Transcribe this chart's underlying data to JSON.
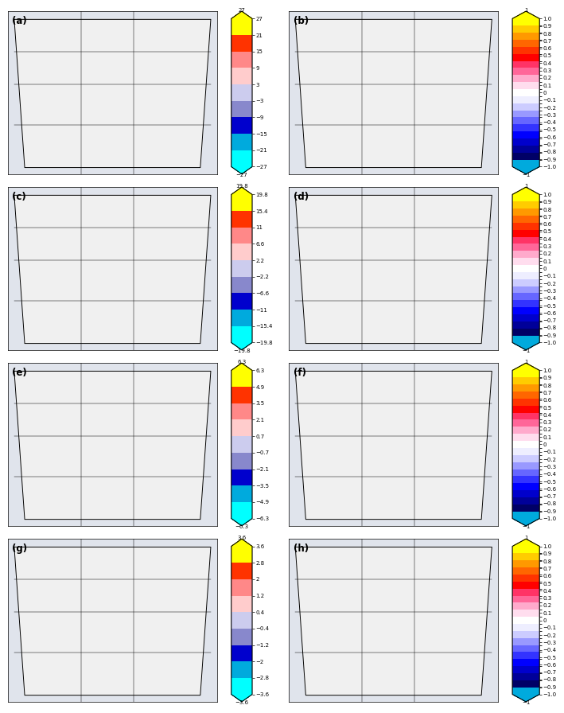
{
  "panels": [
    {
      "label": "a",
      "cbar_vals": [
        27,
        21,
        15,
        9,
        3,
        -3,
        -9,
        -15,
        -21,
        -27
      ],
      "cbar_ticks": [
        27,
        21,
        15,
        9,
        3,
        -3,
        -9,
        -15,
        -21,
        -27
      ]
    },
    {
      "label": "b",
      "cbar_vals": [
        1,
        0.9,
        0.8,
        0.7,
        0.6,
        0.5,
        0.4,
        0.3,
        0.2,
        0.1,
        0,
        -0.1,
        -0.2,
        -0.3,
        -0.4,
        -0.5,
        -0.6,
        -0.7,
        -0.8,
        -0.9,
        -1
      ],
      "cbar_ticks": [
        1,
        0.9,
        0.8,
        0.7,
        0.6,
        0.5,
        0.4,
        0.3,
        0.2,
        0.1,
        0,
        -0.1,
        -0.2,
        -0.3,
        -0.4,
        -0.5,
        -0.6,
        -0.7,
        -0.8,
        -0.9,
        -1
      ]
    },
    {
      "label": "c",
      "cbar_vals": [
        19.8,
        15.4,
        11,
        6.6,
        2.2,
        -2.2,
        -6.6,
        -11,
        -15.4,
        -19.8
      ],
      "cbar_ticks": [
        19.8,
        15.4,
        11,
        6.6,
        2.2,
        -2.2,
        -6.6,
        -11,
        -15.4,
        -19.8
      ]
    },
    {
      "label": "d",
      "cbar_vals": [
        1,
        0.9,
        0.8,
        0.7,
        0.6,
        0.5,
        0.4,
        0.3,
        0.2,
        0.1,
        0,
        -0.1,
        -0.2,
        -0.3,
        -0.4,
        -0.5,
        -0.6,
        -0.7,
        -0.8,
        -0.9,
        -1
      ],
      "cbar_ticks": [
        1,
        0.9,
        0.8,
        0.7,
        0.6,
        0.5,
        0.4,
        0.3,
        0.2,
        0.1,
        0,
        -0.1,
        -0.2,
        -0.3,
        -0.4,
        -0.5,
        -0.6,
        -0.7,
        -0.8,
        -0.9,
        -1
      ]
    },
    {
      "label": "e",
      "cbar_vals": [
        6.3,
        4.9,
        3.5,
        2.1,
        0.7,
        -0.7,
        -2.1,
        -3.5,
        -4.9,
        -6.3
      ],
      "cbar_ticks": [
        6.3,
        4.9,
        3.5,
        2.1,
        0.7,
        -0.7,
        -2.1,
        -3.5,
        -4.9,
        -6.3
      ]
    },
    {
      "label": "f",
      "cbar_vals": [
        1,
        0.9,
        0.8,
        0.7,
        0.6,
        0.5,
        0.4,
        0.3,
        0.2,
        0.1,
        0,
        -0.1,
        -0.2,
        -0.3,
        -0.4,
        -0.5,
        -0.6,
        -0.7,
        -0.8,
        -0.9,
        -1
      ],
      "cbar_ticks": [
        1,
        0.9,
        0.8,
        0.7,
        0.6,
        0.5,
        0.4,
        0.3,
        0.2,
        0.1,
        0,
        -0.1,
        -0.2,
        -0.3,
        -0.4,
        -0.5,
        -0.6,
        -0.7,
        -0.8,
        -0.9,
        -1
      ]
    },
    {
      "label": "g",
      "cbar_vals": [
        3.6,
        2.8,
        2.0,
        1.2,
        0.4,
        -0.4,
        -1.2,
        -2.0,
        -2.8,
        -3.6
      ],
      "cbar_ticks": [
        3.6,
        2.8,
        2.0,
        1.2,
        0.4,
        -0.4,
        -1.2,
        -2.0,
        -2.8,
        -3.6
      ]
    },
    {
      "label": "h",
      "cbar_vals": [
        1,
        0.9,
        0.8,
        0.7,
        0.6,
        0.5,
        0.4,
        0.3,
        0.2,
        0.1,
        0,
        -0.1,
        -0.2,
        -0.3,
        -0.4,
        -0.5,
        -0.6,
        -0.7,
        -0.8,
        -0.9,
        -1
      ],
      "cbar_ticks": [
        1,
        0.9,
        0.8,
        0.7,
        0.6,
        0.5,
        0.4,
        0.3,
        0.2,
        0.1,
        0,
        -0.1,
        -0.2,
        -0.3,
        -0.4,
        -0.5,
        -0.6,
        -0.7,
        -0.8,
        -0.9,
        -1
      ]
    }
  ],
  "left_colors": [
    "#ffff00",
    "#ff9900",
    "#ff4500",
    "#ff8080",
    "#ffffff",
    "#8080ff",
    "#0000cd",
    "#00aadd",
    "#00ffff"
  ],
  "right_colors": [
    "#ffff00",
    "#ffcc00",
    "#ff9900",
    "#ff6600",
    "#ff3300",
    "#ff0000",
    "#ff3366",
    "#ff6699",
    "#ffaacc",
    "#ffddee",
    "#ffffff",
    "#ccccff",
    "#9999ff",
    "#6666ff",
    "#3333ff",
    "#0000ff",
    "#0000cc",
    "#000099",
    "#000066",
    "#003366",
    "#00aadd"
  ],
  "background_color": "#ffffff",
  "map_bg": "#f5f5f5",
  "label_fontsize": 9,
  "tick_fontsize": 6.5,
  "cbar_label_fontsize": 6.5
}
